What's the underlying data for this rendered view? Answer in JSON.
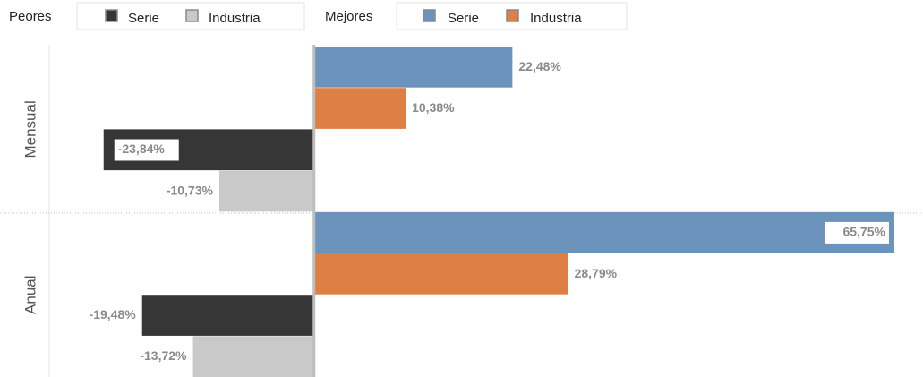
{
  "chart_data": {
    "type": "bar",
    "orientation": "horizontal",
    "categories": [
      "Mensual",
      "Anual"
    ],
    "xlim": [
      -30,
      69
    ],
    "series_groups": [
      {
        "name": "Peores",
        "series": [
          {
            "name": "Serie",
            "color": "#363636",
            "values": [
              -23.84,
              -19.48
            ],
            "value_labels": [
              "-23,84%",
              "-19,48%"
            ]
          },
          {
            "name": "Industria",
            "color": "#c9c9c9",
            "values": [
              -10.73,
              -13.72
            ],
            "value_labels": [
              "-10,73%",
              "-13,72%"
            ]
          }
        ]
      },
      {
        "name": "Mejores",
        "series": [
          {
            "name": "Serie",
            "color": "#6b93bb",
            "values": [
              22.48,
              65.75
            ],
            "value_labels": [
              "22,48%",
              "65,75%"
            ]
          },
          {
            "name": "Industria",
            "color": "#de8045",
            "values": [
              10.38,
              28.79
            ],
            "value_labels": [
              "10,38%",
              "28,79%"
            ]
          }
        ]
      }
    ]
  }
}
